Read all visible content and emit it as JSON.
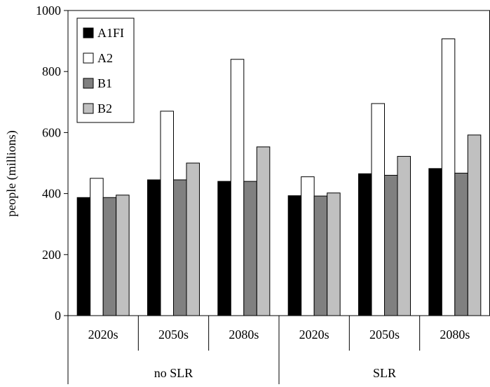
{
  "chart_data": {
    "type": "bar",
    "title": "",
    "xlabel": "",
    "ylabel": "people (millions)",
    "ylim": [
      0,
      1000
    ],
    "yticks": [
      0,
      200,
      400,
      600,
      800,
      1000
    ],
    "groups": [
      {
        "label": "no SLR",
        "categories": [
          "2020s",
          "2050s",
          "2080s"
        ]
      },
      {
        "label": "SLR",
        "categories": [
          "2020s",
          "2050s",
          "2080s"
        ]
      }
    ],
    "categories": [
      "2020s",
      "2050s",
      "2080s",
      "2020s",
      "2050s",
      "2080s"
    ],
    "series": [
      {
        "name": "A1FI",
        "color": "#000000",
        "values": [
          387,
          445,
          440,
          393,
          465,
          482
        ]
      },
      {
        "name": "A2",
        "color": "#ffffff",
        "values": [
          450,
          670,
          840,
          455,
          695,
          907
        ]
      },
      {
        "name": "B1",
        "color": "#808080",
        "values": [
          387,
          445,
          440,
          392,
          460,
          467
        ]
      },
      {
        "name": "B2",
        "color": "#c0c0c0",
        "values": [
          395,
          500,
          553,
          402,
          522,
          592
        ]
      }
    ],
    "grid": false,
    "legend_position": "top-left"
  }
}
